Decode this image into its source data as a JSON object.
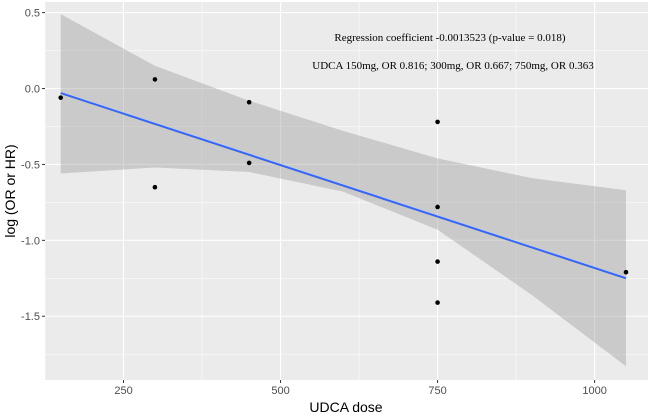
{
  "chart_data": {
    "type": "scatter",
    "xlabel": "UDCA dose",
    "ylabel": "log (OR or HR)",
    "xlim": [
      125,
      1085
    ],
    "ylim": [
      -1.92,
      0.57
    ],
    "x_ticks": [
      250,
      500,
      750,
      1000
    ],
    "x_tick_labels": [
      "250",
      "500",
      "750",
      "1000"
    ],
    "y_ticks": [
      0.5,
      0.0,
      -0.5,
      -1.0,
      -1.5
    ],
    "y_tick_labels": [
      "0.5",
      "0.0",
      "-0.5",
      "-1.0",
      "-1.5"
    ],
    "grid": true,
    "points": [
      {
        "x": 150,
        "y": -0.06
      },
      {
        "x": 300,
        "y": 0.06
      },
      {
        "x": 300,
        "y": -0.65
      },
      {
        "x": 450,
        "y": -0.09
      },
      {
        "x": 450,
        "y": -0.49
      },
      {
        "x": 750,
        "y": -0.22
      },
      {
        "x": 750,
        "y": -0.78
      },
      {
        "x": 750,
        "y": -1.14
      },
      {
        "x": 750,
        "y": -1.41
      },
      {
        "x": 1050,
        "y": -1.21
      }
    ],
    "regression_line": {
      "x": [
        150,
        1050
      ],
      "y": [
        -0.03,
        -1.25
      ],
      "color": "#3366FF"
    },
    "confidence_band": {
      "color": "#999999",
      "upper": [
        [
          150,
          0.49
        ],
        [
          300,
          0.15
        ],
        [
          450,
          -0.08
        ],
        [
          600,
          -0.28
        ],
        [
          750,
          -0.46
        ],
        [
          900,
          -0.59
        ],
        [
          1050,
          -0.67
        ]
      ],
      "lower": [
        [
          150,
          -0.56
        ],
        [
          300,
          -0.52
        ],
        [
          450,
          -0.55
        ],
        [
          600,
          -0.68
        ],
        [
          750,
          -0.93
        ],
        [
          900,
          -1.36
        ],
        [
          1050,
          -1.83
        ]
      ]
    },
    "annotations": [
      "Regression coefficient -0.0013523 (p-value = 0.018)",
      "UDCA 150mg, OR 0.816; 300mg, OR 0.667; 750mg, OR 0.363"
    ],
    "panel_background": "#EBEBEB",
    "grid_color": "#FFFFFF"
  }
}
